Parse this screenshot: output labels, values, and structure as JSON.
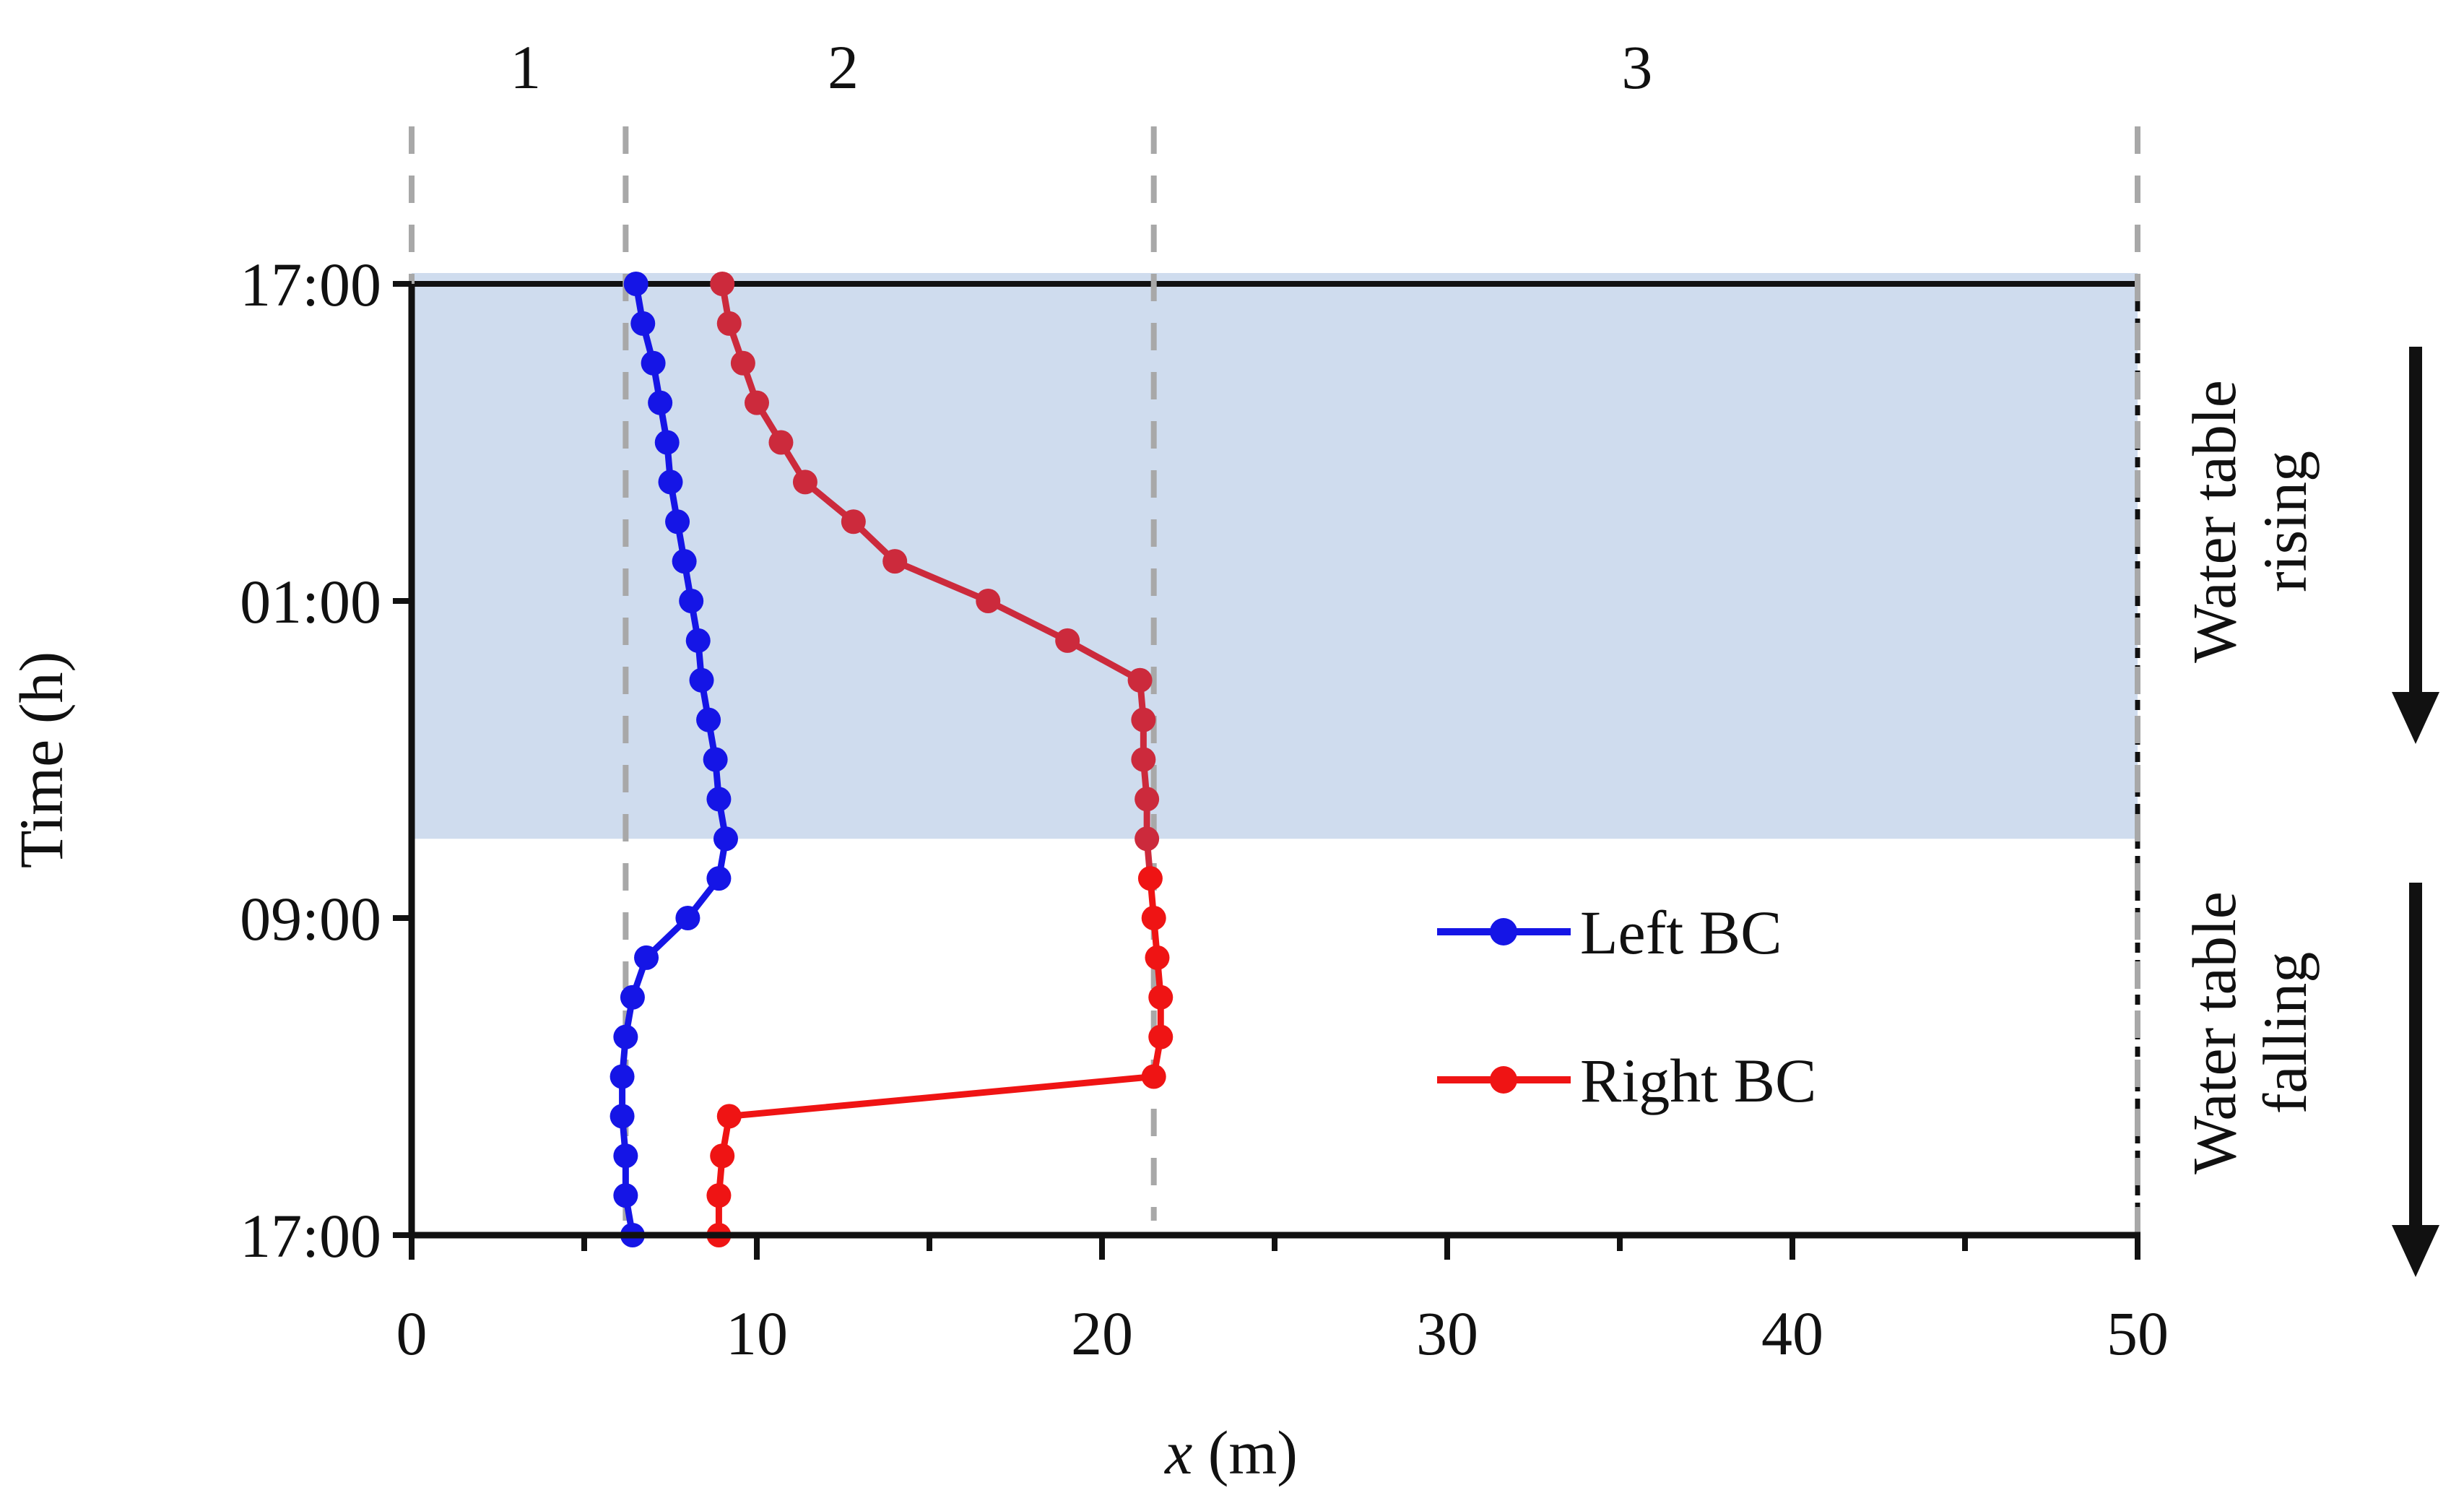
{
  "chart_data": {
    "type": "line",
    "xlabel_italic": "x",
    "xlabel_unit": "(m)",
    "ylabel": "Time (h)",
    "xlim": [
      0,
      50
    ],
    "x_ticks": [
      0,
      10,
      20,
      30,
      40,
      50
    ],
    "y_ticks": [
      {
        "label": "17:00",
        "hours": 0
      },
      {
        "label": "01:00",
        "hours": 8
      },
      {
        "label": "09:00",
        "hours": 16
      },
      {
        "label": "17:00",
        "hours": 24
      }
    ],
    "ylim_hours": [
      0,
      24
    ],
    "rising_band_hours": [
      0,
      14
    ],
    "boundary_lines_x": [
      0,
      6.2,
      21.5,
      50
    ],
    "zones": [
      {
        "label": "1",
        "x_center": 3.3
      },
      {
        "label": "2",
        "x_center": 12.5
      },
      {
        "label": "3",
        "x_center": 35.5
      }
    ],
    "side_labels": [
      {
        "line1": "Water table",
        "line2": "rising"
      },
      {
        "line1": "Water table",
        "line2": "falling"
      }
    ],
    "colors": {
      "left_bc": "#1515e6",
      "right_bc_rising": "#cc2a3c",
      "right_bc_falling": "#ef1414",
      "band": "#cfdcee",
      "boundary": "#a8a8a8",
      "axis": "#111111"
    },
    "legend": {
      "position": "lower-center-right",
      "entries": [
        "Left BC",
        "Right BC"
      ]
    },
    "series": [
      {
        "name": "Left BC",
        "points": [
          [
            6.5,
            0
          ],
          [
            6.7,
            1
          ],
          [
            7.0,
            2
          ],
          [
            7.2,
            3
          ],
          [
            7.4,
            4
          ],
          [
            7.5,
            5
          ],
          [
            7.7,
            6
          ],
          [
            7.9,
            7
          ],
          [
            8.1,
            8
          ],
          [
            8.3,
            9
          ],
          [
            8.4,
            10
          ],
          [
            8.6,
            11
          ],
          [
            8.8,
            12
          ],
          [
            8.9,
            13
          ],
          [
            9.1,
            14
          ],
          [
            8.9,
            15
          ],
          [
            8.0,
            16
          ],
          [
            6.8,
            17
          ],
          [
            6.4,
            18
          ],
          [
            6.2,
            19
          ],
          [
            6.1,
            20
          ],
          [
            6.1,
            21
          ],
          [
            6.2,
            22
          ],
          [
            6.2,
            23
          ],
          [
            6.4,
            24
          ]
        ]
      },
      {
        "name": "Right BC",
        "points": [
          [
            9.0,
            0
          ],
          [
            9.2,
            1
          ],
          [
            9.6,
            2
          ],
          [
            10.0,
            3
          ],
          [
            10.7,
            4
          ],
          [
            11.4,
            5
          ],
          [
            12.8,
            6
          ],
          [
            14.0,
            7
          ],
          [
            16.7,
            8
          ],
          [
            19.0,
            9
          ],
          [
            21.1,
            10
          ],
          [
            21.2,
            11
          ],
          [
            21.2,
            12
          ],
          [
            21.3,
            13
          ],
          [
            21.3,
            14
          ],
          [
            21.4,
            15
          ],
          [
            21.5,
            16
          ],
          [
            21.6,
            17
          ],
          [
            21.7,
            18
          ],
          [
            21.7,
            19
          ],
          [
            21.5,
            20
          ],
          [
            9.2,
            21
          ],
          [
            9.0,
            22
          ],
          [
            8.9,
            23
          ],
          [
            8.9,
            24
          ]
        ]
      }
    ]
  }
}
